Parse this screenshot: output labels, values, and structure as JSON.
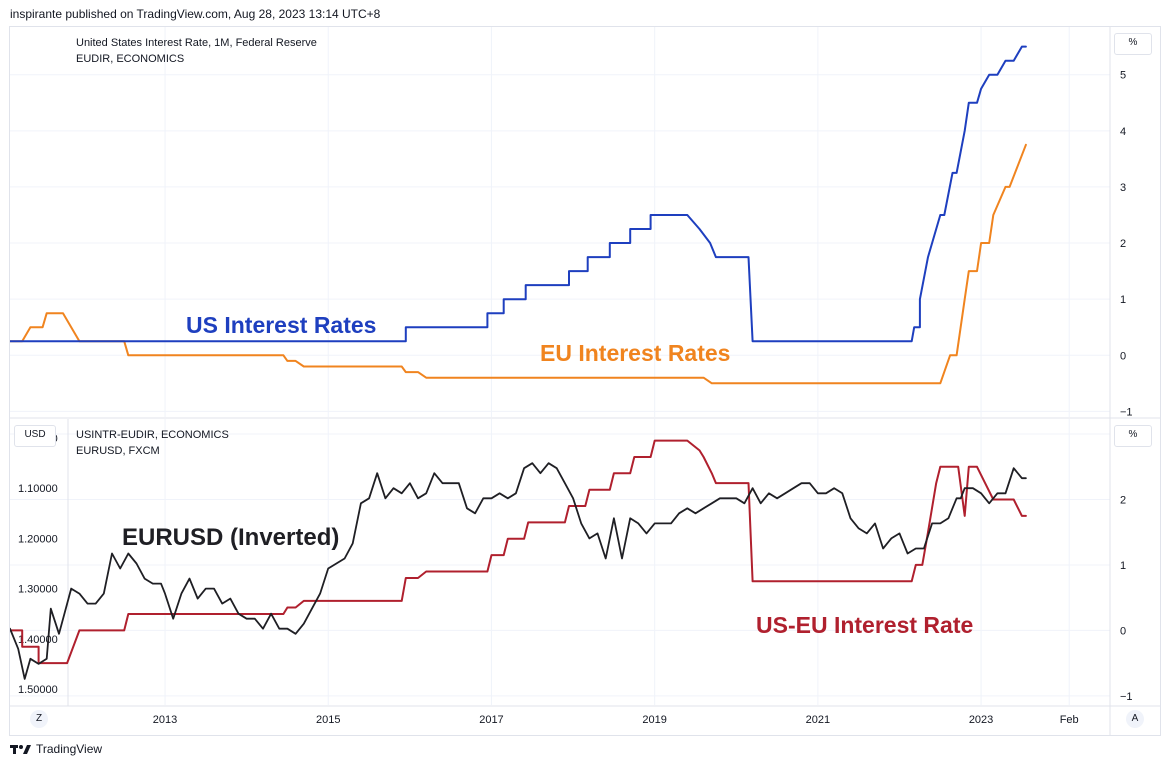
{
  "header": {
    "published": "inspirante published on TradingView.com, Aug 28, 2023 13:14 UTC+8"
  },
  "footer": {
    "brand": "TradingView",
    "logo": "tradingview-logo"
  },
  "top_pane": {
    "legend_line1": "United States Interest Rate, 1M, Federal Reserve",
    "legend_line2": "EUDIR, ECONOMICS",
    "unit": "%",
    "label_us": "US Interest Rates",
    "label_eu": "EU Interest Rates"
  },
  "bottom_pane": {
    "legend_line1": "USINTR-EUDIR, ECONOMICS",
    "legend_line2": "EURUSD, FXCM",
    "unit_left": "USD",
    "unit_right": "%",
    "label_eurusd": "EURUSD (Inverted)",
    "label_diff": "US-EU Interest Rate"
  },
  "buttons": {
    "left": "Z",
    "right": "A"
  },
  "colors": {
    "us": "#1e3fbf",
    "eu": "#f0841f",
    "diff": "#b0202e",
    "eurusd": "#1f1f24",
    "grid": "#f0f3fa",
    "axis_text": "#131722"
  },
  "chart_data": [
    {
      "type": "line",
      "title": "United States Interest Rate, 1M, Federal Reserve",
      "ylabel": "%",
      "ylim": [
        -1.1,
        5.85
      ],
      "yticks": [
        -1,
        0,
        1,
        2,
        3,
        4,
        5
      ],
      "xlim": [
        2011.1,
        2024.58
      ],
      "series": [
        {
          "name": "US Interest Rates",
          "x": [
            2011.1,
            2015.95,
            2015.95,
            2016.95,
            2016.95,
            2017.15,
            2017.15,
            2017.42,
            2017.42,
            2017.95,
            2017.95,
            2018.18,
            2018.18,
            2018.45,
            2018.45,
            2018.7,
            2018.7,
            2018.95,
            2018.95,
            2019.4,
            2019.55,
            2019.55,
            2019.68,
            2019.75,
            2020.15,
            2020.2,
            2022.15,
            2022.18,
            2022.25,
            2022.25,
            2022.35,
            2022.5,
            2022.55,
            2022.65,
            2022.7,
            2022.8,
            2022.85,
            2022.95,
            2023.0,
            2023.1,
            2023.2,
            2023.3,
            2023.4,
            2023.5,
            2023.55
          ],
          "y": [
            0.25,
            0.25,
            0.5,
            0.5,
            0.75,
            0.75,
            1.0,
            1.0,
            1.25,
            1.25,
            1.5,
            1.5,
            1.75,
            1.75,
            2.0,
            2.0,
            2.25,
            2.25,
            2.5,
            2.5,
            2.25,
            2.25,
            2.0,
            1.75,
            1.75,
            0.25,
            0.25,
            0.5,
            0.5,
            1.0,
            1.75,
            2.5,
            2.5,
            3.25,
            3.25,
            4.0,
            4.5,
            4.5,
            4.75,
            5.0,
            5.0,
            5.25,
            5.25,
            5.5,
            5.5
          ]
        },
        {
          "name": "EU Interest Rates",
          "x": [
            2011.1,
            2011.25,
            2011.35,
            2011.5,
            2011.55,
            2011.75,
            2011.85,
            2011.95,
            2012.5,
            2012.55,
            2014.45,
            2014.5,
            2014.6,
            2014.7,
            2015.9,
            2015.95,
            2016.1,
            2016.2,
            2019.6,
            2019.7,
            2022.5,
            2022.62,
            2022.7,
            2022.8,
            2022.85,
            2022.95,
            2023.0,
            2023.1,
            2023.15,
            2023.3,
            2023.35,
            2023.55
          ],
          "y": [
            0.25,
            0.25,
            0.5,
            0.5,
            0.75,
            0.75,
            0.5,
            0.25,
            0.25,
            0.0,
            0.0,
            -0.1,
            -0.1,
            -0.2,
            -0.2,
            -0.3,
            -0.3,
            -0.4,
            -0.4,
            -0.5,
            -0.5,
            0.0,
            0.0,
            1.0,
            1.5,
            1.5,
            2.0,
            2.0,
            2.5,
            3.0,
            3.0,
            3.75
          ]
        }
      ]
    },
    {
      "type": "line",
      "title": "USINTR-EUDIR, ECONOMICS",
      "ylabel": "USD",
      "ylabel_right": "%",
      "xlim": [
        2011.1,
        2024.58
      ],
      "xticks": [
        "2013",
        "2015",
        "2017",
        "2019",
        "2021",
        "2023",
        "Feb"
      ],
      "xtick_values": [
        2013,
        2015,
        2017,
        2019,
        2021,
        2023,
        2024.08
      ],
      "left_axis": {
        "inverted": true,
        "ylim": [
          1.532,
          0.962
        ],
        "ticks": [
          "1.00000",
          "1.10000",
          "1.20000",
          "1.30000",
          "1.40000",
          "1.50000"
        ]
      },
      "right_axis": {
        "ylim": [
          -1.14,
          3.23
        ],
        "ticks": [
          -1,
          0,
          1,
          2,
          3
        ]
      },
      "series": [
        {
          "name": "US-EU Interest Rate",
          "axis": "right",
          "x": [
            2011.1,
            2011.25,
            2011.25,
            2011.45,
            2011.45,
            2011.8,
            2011.95,
            2012.5,
            2012.55,
            2014.45,
            2014.5,
            2014.6,
            2014.7,
            2015.9,
            2015.95,
            2016.1,
            2016.2,
            2016.95,
            2017.0,
            2017.15,
            2017.2,
            2017.4,
            2017.45,
            2017.9,
            2017.95,
            2018.15,
            2018.2,
            2018.45,
            2018.5,
            2018.7,
            2018.75,
            2018.95,
            2019.0,
            2019.4,
            2019.55,
            2019.6,
            2019.7,
            2019.75,
            2020.15,
            2020.2,
            2022.15,
            2022.2,
            2022.28,
            2022.35,
            2022.45,
            2022.5,
            2022.6,
            2022.72,
            2022.8,
            2022.85,
            2022.95,
            2023.05,
            2023.15,
            2023.3,
            2023.4,
            2023.5,
            2023.55
          ],
          "y": [
            0.0,
            0.0,
            -0.25,
            -0.25,
            -0.5,
            -0.5,
            0.0,
            0.0,
            0.25,
            0.25,
            0.35,
            0.35,
            0.45,
            0.45,
            0.8,
            0.8,
            0.9,
            0.9,
            1.15,
            1.15,
            1.4,
            1.4,
            1.65,
            1.65,
            1.9,
            1.9,
            2.15,
            2.15,
            2.4,
            2.4,
            2.65,
            2.65,
            2.9,
            2.9,
            2.75,
            2.65,
            2.4,
            2.25,
            2.25,
            0.75,
            0.75,
            1.0,
            1.0,
            1.5,
            2.25,
            2.5,
            2.5,
            2.5,
            1.75,
            2.5,
            2.5,
            2.25,
            2.0,
            2.0,
            2.0,
            1.75,
            1.75
          ]
        },
        {
          "name": "EURUSD (Inverted)",
          "axis": "left",
          "x": [
            2011.1,
            2011.2,
            2011.28,
            2011.35,
            2011.45,
            2011.55,
            2011.6,
            2011.7,
            2011.85,
            2011.95,
            2012.05,
            2012.15,
            2012.25,
            2012.35,
            2012.45,
            2012.55,
            2012.65,
            2012.75,
            2012.85,
            2012.95,
            2013.0,
            2013.1,
            2013.2,
            2013.3,
            2013.4,
            2013.5,
            2013.6,
            2013.7,
            2013.8,
            2013.9,
            2014.0,
            2014.1,
            2014.2,
            2014.3,
            2014.4,
            2014.5,
            2014.6,
            2014.7,
            2014.8,
            2014.9,
            2015.0,
            2015.1,
            2015.2,
            2015.3,
            2015.4,
            2015.5,
            2015.6,
            2015.7,
            2015.8,
            2015.9,
            2016.0,
            2016.1,
            2016.2,
            2016.3,
            2016.4,
            2016.5,
            2016.6,
            2016.7,
            2016.8,
            2016.9,
            2017.0,
            2017.1,
            2017.2,
            2017.3,
            2017.4,
            2017.5,
            2017.6,
            2017.7,
            2017.8,
            2017.9,
            2018.0,
            2018.1,
            2018.2,
            2018.3,
            2018.4,
            2018.5,
            2018.6,
            2018.7,
            2018.8,
            2018.9,
            2019.0,
            2019.1,
            2019.2,
            2019.3,
            2019.4,
            2019.5,
            2019.6,
            2019.7,
            2019.8,
            2019.9,
            2020.0,
            2020.1,
            2020.2,
            2020.3,
            2020.4,
            2020.5,
            2020.6,
            2020.7,
            2020.8,
            2020.9,
            2021.0,
            2021.1,
            2021.2,
            2021.3,
            2021.4,
            2021.5,
            2021.6,
            2021.7,
            2021.8,
            2021.9,
            2022.0,
            2022.1,
            2022.2,
            2022.3,
            2022.4,
            2022.5,
            2022.6,
            2022.7,
            2022.75,
            2022.8,
            2022.9,
            2023.0,
            2023.05,
            2023.1,
            2023.2,
            2023.3,
            2023.4,
            2023.5,
            2023.55
          ],
          "y": [
            1.38,
            1.42,
            1.48,
            1.44,
            1.45,
            1.44,
            1.34,
            1.39,
            1.3,
            1.31,
            1.33,
            1.33,
            1.31,
            1.23,
            1.26,
            1.23,
            1.25,
            1.28,
            1.29,
            1.29,
            1.31,
            1.36,
            1.31,
            1.28,
            1.32,
            1.3,
            1.3,
            1.33,
            1.32,
            1.35,
            1.36,
            1.36,
            1.38,
            1.35,
            1.38,
            1.38,
            1.39,
            1.37,
            1.34,
            1.31,
            1.26,
            1.25,
            1.24,
            1.21,
            1.13,
            1.12,
            1.07,
            1.12,
            1.1,
            1.11,
            1.09,
            1.12,
            1.11,
            1.07,
            1.09,
            1.09,
            1.09,
            1.14,
            1.15,
            1.12,
            1.12,
            1.11,
            1.12,
            1.11,
            1.06,
            1.05,
            1.07,
            1.05,
            1.06,
            1.09,
            1.12,
            1.17,
            1.2,
            1.19,
            1.24,
            1.16,
            1.24,
            1.16,
            1.17,
            1.19,
            1.17,
            1.17,
            1.17,
            1.15,
            1.14,
            1.15,
            1.14,
            1.13,
            1.12,
            1.12,
            1.12,
            1.13,
            1.1,
            1.13,
            1.11,
            1.12,
            1.11,
            1.1,
            1.09,
            1.09,
            1.11,
            1.11,
            1.1,
            1.11,
            1.16,
            1.18,
            1.19,
            1.17,
            1.22,
            1.2,
            1.19,
            1.23,
            1.22,
            1.22,
            1.17,
            1.17,
            1.16,
            1.12,
            1.12,
            1.1,
            1.1,
            1.11,
            1.12,
            1.13,
            1.11,
            1.11,
            1.06,
            1.08,
            1.08
          ]
        }
      ]
    }
  ]
}
